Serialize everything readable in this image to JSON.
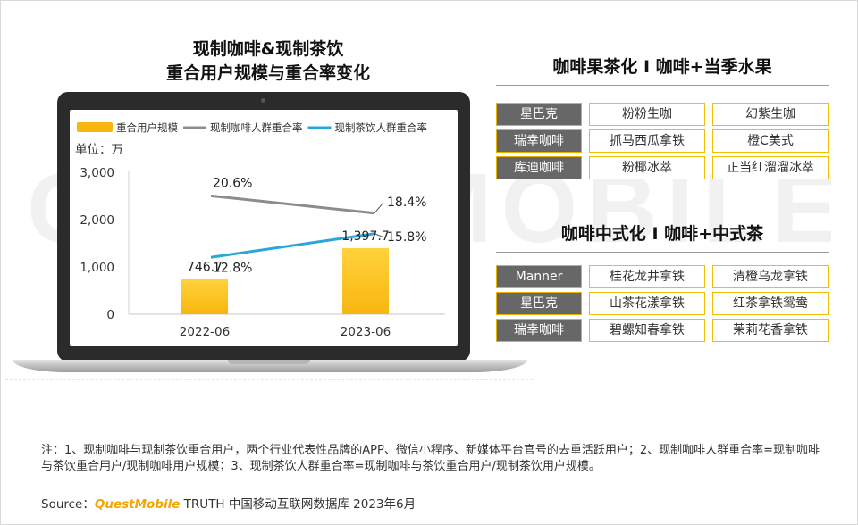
{
  "watermark": "QUESTMOBILE",
  "left_title_line1": "现制咖啡&现制茶饮",
  "left_title_line2": "重合用户规模与重合率变化",
  "chart_data": {
    "type": "bar",
    "unit_label": "单位：万",
    "categories": [
      "2022-06",
      "2023-06"
    ],
    "ylim": [
      0,
      3000
    ],
    "yticks": [
      "0",
      "1,000",
      "2,000",
      "3,000"
    ],
    "series": [
      {
        "name": "重合用户规模",
        "kind": "bar",
        "values": [
          746.7,
          1397.7
        ],
        "labels": [
          "746.7",
          "1,397.7"
        ],
        "color": "#f8b60f"
      },
      {
        "name": "现制咖啡人群重合率",
        "kind": "line",
        "values": [
          20.6,
          18.4
        ],
        "labels": [
          "20.6%",
          "18.4%"
        ],
        "color": "#8c8c8c"
      },
      {
        "name": "现制茶饮人群重合率",
        "kind": "line",
        "values": [
          12.8,
          15.8
        ],
        "labels": [
          "12.8%",
          "15.8%"
        ],
        "color": "#2aa6dc"
      }
    ]
  },
  "section1": {
    "title": "咖啡果茶化 I 咖啡+当季水果",
    "rows": [
      {
        "brand": "星巴克",
        "items": [
          "粉粉生咖",
          "幻紫生咖"
        ]
      },
      {
        "brand": "瑞幸咖啡",
        "items": [
          "抓马西瓜拿铁",
          "橙C美式"
        ]
      },
      {
        "brand": "库迪咖啡",
        "items": [
          "粉椰冰萃",
          "正当红溜溜冰萃"
        ]
      }
    ]
  },
  "section2": {
    "title": "咖啡中式化 I 咖啡+中式茶",
    "rows": [
      {
        "brand": "Manner",
        "items": [
          "桂花龙井拿铁",
          "清橙乌龙拿铁"
        ]
      },
      {
        "brand": "星巴克",
        "items": [
          "山茶花漾拿铁",
          "红茶拿铁鸳鸯"
        ]
      },
      {
        "brand": "瑞幸咖啡",
        "items": [
          "碧螺知春拿铁",
          "茉莉花香拿铁"
        ]
      }
    ]
  },
  "footnote": "注：1、现制咖啡与现制茶饮重合用户，两个行业代表性品牌的APP、微信小程序、新媒体平台官号的去重活跃用户；2、现制咖啡人群重合率=现制咖啡与茶饮重合用户/现制咖啡用户规模；3、现制茶饮人群重合率=现制咖啡与茶饮重合用户/现制茶饮用户规模。",
  "source": {
    "prefix": "Source：",
    "brand": "QuestMobile",
    "suffix": " TRUTH 中国移动互联网数据库 2023年6月"
  }
}
